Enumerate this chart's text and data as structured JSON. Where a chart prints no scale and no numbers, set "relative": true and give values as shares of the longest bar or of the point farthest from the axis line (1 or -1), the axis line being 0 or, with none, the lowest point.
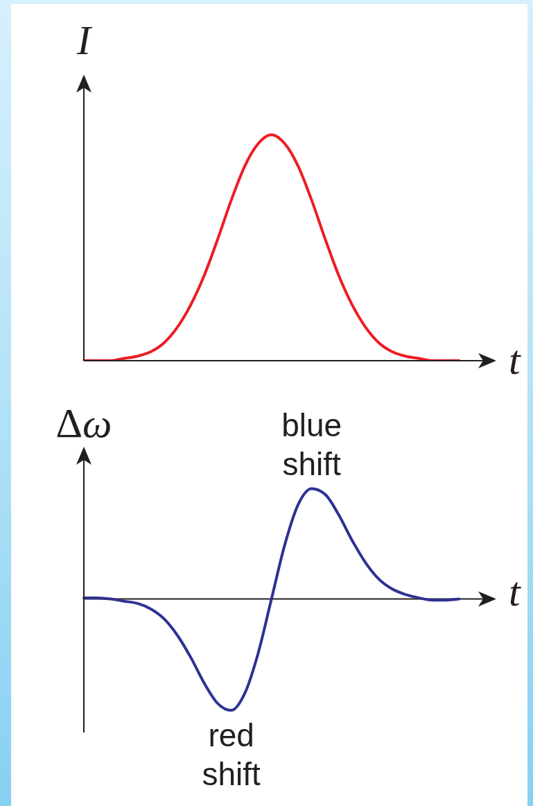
{
  "chart_data": [
    {
      "type": "line",
      "ylabel": "I",
      "xlabel": "t",
      "relative": true,
      "categories": [
        null,
        null,
        null,
        null,
        null,
        null,
        null,
        null,
        null,
        null,
        null,
        null,
        null,
        null,
        null,
        null,
        null,
        null,
        null,
        null,
        null,
        null,
        null,
        null,
        null,
        null,
        null,
        null,
        null,
        null,
        null
      ],
      "series": [
        {
          "color": "#ed1c24",
          "values": [
            0,
            0,
            0,
            0.01,
            0.02,
            0.04,
            0.08,
            0.15,
            0.25,
            0.38,
            0.54,
            0.71,
            0.86,
            0.96,
            1,
            0.96,
            0.86,
            0.71,
            0.54,
            0.38,
            0.25,
            0.15,
            0.08,
            0.04,
            0.02,
            0.01,
            0,
            0,
            0,
            null,
            null
          ]
        }
      ]
    },
    {
      "type": "line",
      "ylabel": "Δω",
      "xlabel": "t",
      "relative": true,
      "categories": [
        null,
        null,
        null,
        null,
        null,
        null,
        null,
        null,
        null,
        null,
        null,
        null,
        null,
        null,
        null,
        null,
        null,
        null,
        null,
        null,
        null,
        null,
        null,
        null,
        null,
        null,
        null,
        null,
        null,
        null,
        null
      ],
      "series": [
        {
          "color": "#2e3192",
          "values": [
            0.01,
            0.01,
            0,
            -0.02,
            -0.04,
            -0.09,
            -0.18,
            -0.33,
            -0.53,
            -0.76,
            -0.94,
            -1,
            -0.85,
            -0.49,
            0,
            0.49,
            0.85,
            0.99,
            0.94,
            0.76,
            0.53,
            0.33,
            0.18,
            0.09,
            0.04,
            0.01,
            -0.01,
            -0.01,
            0,
            null,
            null
          ]
        }
      ],
      "annotations": [
        {
          "text": "blue shift",
          "y": 0.99
        },
        {
          "text": "red shift",
          "y": -1
        }
      ]
    }
  ]
}
